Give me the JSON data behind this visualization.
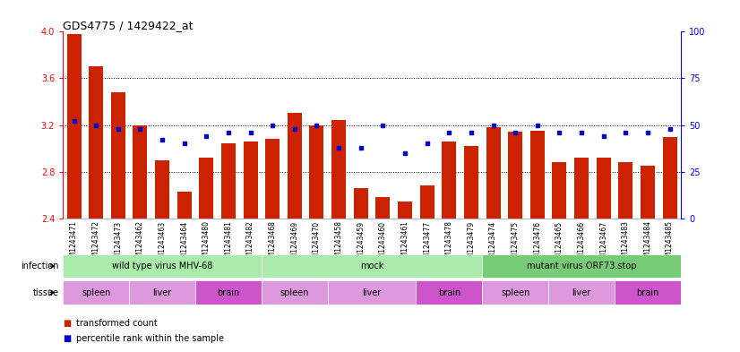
{
  "title": "GDS4775 / 1429422_at",
  "samples": [
    "GSM1243471",
    "GSM1243472",
    "GSM1243473",
    "GSM1243462",
    "GSM1243463",
    "GSM1243464",
    "GSM1243480",
    "GSM1243481",
    "GSM1243482",
    "GSM1243468",
    "GSM1243469",
    "GSM1243470",
    "GSM1243458",
    "GSM1243459",
    "GSM1243460",
    "GSM1243461",
    "GSM1243477",
    "GSM1243478",
    "GSM1243479",
    "GSM1243474",
    "GSM1243475",
    "GSM1243476",
    "GSM1243465",
    "GSM1243466",
    "GSM1243467",
    "GSM1243483",
    "GSM1243484",
    "GSM1243485"
  ],
  "bar_values": [
    3.98,
    3.7,
    3.48,
    3.2,
    2.9,
    2.63,
    2.92,
    3.04,
    3.06,
    3.08,
    3.3,
    3.2,
    3.24,
    2.66,
    2.58,
    2.54,
    2.68,
    3.06,
    3.02,
    3.18,
    3.14,
    3.15,
    2.88,
    2.92,
    2.92,
    2.88,
    2.85,
    3.1
  ],
  "percentile_values": [
    52,
    50,
    48,
    48,
    42,
    40,
    44,
    46,
    46,
    50,
    48,
    50,
    38,
    38,
    50,
    35,
    40,
    46,
    46,
    50,
    46,
    50,
    46,
    46,
    44,
    46,
    46,
    48
  ],
  "y_min": 2.4,
  "y_max": 4.0,
  "y_ticks": [
    2.4,
    2.8,
    3.2,
    3.6,
    4.0
  ],
  "y2_ticks": [
    0,
    25,
    50,
    75,
    100
  ],
  "bar_color": "#CC2200",
  "point_color": "#0000CC",
  "infection_groups": [
    {
      "label": "wild type virus MHV-68",
      "start": 0,
      "end": 9
    },
    {
      "label": "mock",
      "start": 9,
      "end": 19
    },
    {
      "label": "mutant virus ORF73.stop",
      "start": 19,
      "end": 28
    }
  ],
  "tissue_groups": [
    {
      "label": "spleen",
      "start": 0,
      "end": 3,
      "color": "#DD99DD"
    },
    {
      "label": "liver",
      "start": 3,
      "end": 6,
      "color": "#DD99DD"
    },
    {
      "label": "brain",
      "start": 6,
      "end": 9,
      "color": "#CC55CC"
    },
    {
      "label": "spleen",
      "start": 9,
      "end": 12,
      "color": "#DD99DD"
    },
    {
      "label": "liver",
      "start": 12,
      "end": 16,
      "color": "#DD99DD"
    },
    {
      "label": "brain",
      "start": 16,
      "end": 19,
      "color": "#CC55CC"
    },
    {
      "label": "spleen",
      "start": 19,
      "end": 22,
      "color": "#DD99DD"
    },
    {
      "label": "liver",
      "start": 22,
      "end": 25,
      "color": "#DD99DD"
    },
    {
      "label": "brain",
      "start": 25,
      "end": 28,
      "color": "#CC55CC"
    }
  ],
  "infection_color_wt": "#AAEAAA",
  "infection_color_mock": "#AAEAAA",
  "infection_color_mut": "#77CC77",
  "legend_bar_label": "transformed count",
  "legend_pct_label": "percentile rank within the sample"
}
